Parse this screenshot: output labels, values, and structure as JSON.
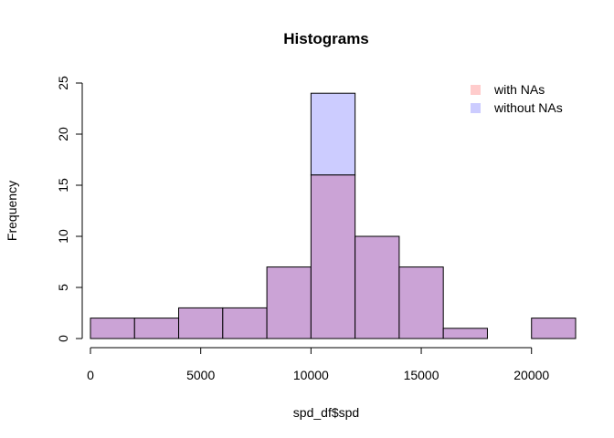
{
  "chart_data": {
    "type": "bar",
    "title": "Histograms",
    "xlabel": "spd_df$spd",
    "ylabel": "Frequency",
    "xlim": [
      0,
      22000
    ],
    "ylim": [
      0,
      25
    ],
    "x_ticks": [
      0,
      5000,
      10000,
      15000,
      20000
    ],
    "y_ticks": [
      0,
      5,
      10,
      15,
      20,
      25
    ],
    "bin_edges": [
      0,
      2000,
      4000,
      6000,
      8000,
      10000,
      12000,
      14000,
      16000,
      18000,
      20000,
      22000
    ],
    "legend_position": "top-right",
    "overlap_color": "#CBA3D6",
    "series": [
      {
        "name": "with NAs",
        "color": "#FFCCCC",
        "values": [
          2,
          2,
          3,
          3,
          7,
          16,
          10,
          7,
          1,
          0,
          2
        ]
      },
      {
        "name": "without NAs",
        "color": "#CCCCFF",
        "values": [
          2,
          2,
          3,
          3,
          7,
          24,
          10,
          7,
          1,
          0,
          2
        ]
      }
    ]
  }
}
